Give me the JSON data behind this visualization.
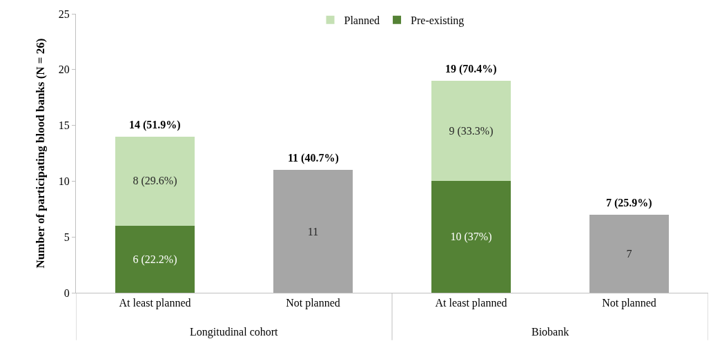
{
  "chart_data": {
    "type": "bar",
    "stacked": true,
    "ylabel": "Number of participating blood banks (N = 26)",
    "categories": [
      "At least planned",
      "Not planned",
      "At least planned",
      "Not planned"
    ],
    "series": [
      {
        "name": "Pre-existing",
        "color": "#548235",
        "values": [
          6,
          null,
          10,
          null
        ],
        "value_labels": [
          "6 (22.2%)",
          null,
          "10 (37%)",
          null
        ]
      },
      {
        "name": "Planned",
        "color": "#c5e0b4",
        "values": [
          8,
          null,
          9,
          null
        ],
        "value_labels": [
          "8 (29.6%)",
          null,
          "9 (33.3%)",
          null
        ]
      },
      {
        "color": "#a6a6a6",
        "values": [
          null,
          11,
          null,
          7
        ],
        "value_labels": [
          null,
          "11",
          null,
          "7"
        ]
      }
    ],
    "totals": [
      "14 (51.9%)",
      "11 (40.7%)",
      "19 (70.4%)",
      "7 (25.9%)"
    ],
    "annotations": [
      "Longitudinal cohort",
      "Biobank"
    ],
    "ylim": [
      0,
      25
    ],
    "yticks": [
      0,
      5,
      10,
      15,
      20,
      25
    ],
    "grid": false,
    "legend": "top"
  }
}
